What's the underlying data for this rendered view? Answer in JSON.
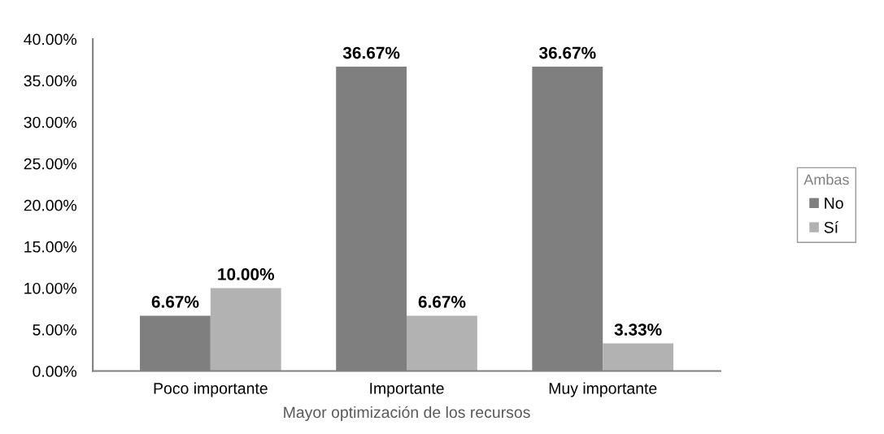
{
  "chart_data": {
    "type": "bar",
    "categories": [
      "Poco importante",
      "Importante",
      "Muy importante"
    ],
    "xlabel": "Mayor optimización de los recursos",
    "legend_title": "Ambas",
    "series": [
      {
        "name": "No",
        "color": "#7f7f7f",
        "values": [
          6.67,
          36.67,
          36.67
        ],
        "value_labels": [
          "6.67%",
          "36.67%",
          "36.67%"
        ]
      },
      {
        "name": "Sí",
        "color": "#b2b2b2",
        "values": [
          10.0,
          6.67,
          3.33
        ],
        "value_labels": [
          "10.00%",
          "6.67%",
          "3.33%"
        ]
      }
    ],
    "ylim": [
      0,
      40
    ],
    "yticks": [
      {
        "value": 0,
        "label": "0.00%"
      },
      {
        "value": 5,
        "label": "5.00%"
      },
      {
        "value": 10,
        "label": "10.00%"
      },
      {
        "value": 15,
        "label": "15.00%"
      },
      {
        "value": 20,
        "label": "20.00%"
      },
      {
        "value": 25,
        "label": "25.00%"
      },
      {
        "value": 30,
        "label": "30.00%"
      },
      {
        "value": 35,
        "label": "35.00%"
      },
      {
        "value": 40,
        "label": "40.00%"
      }
    ],
    "grid": false,
    "legend": "right"
  }
}
